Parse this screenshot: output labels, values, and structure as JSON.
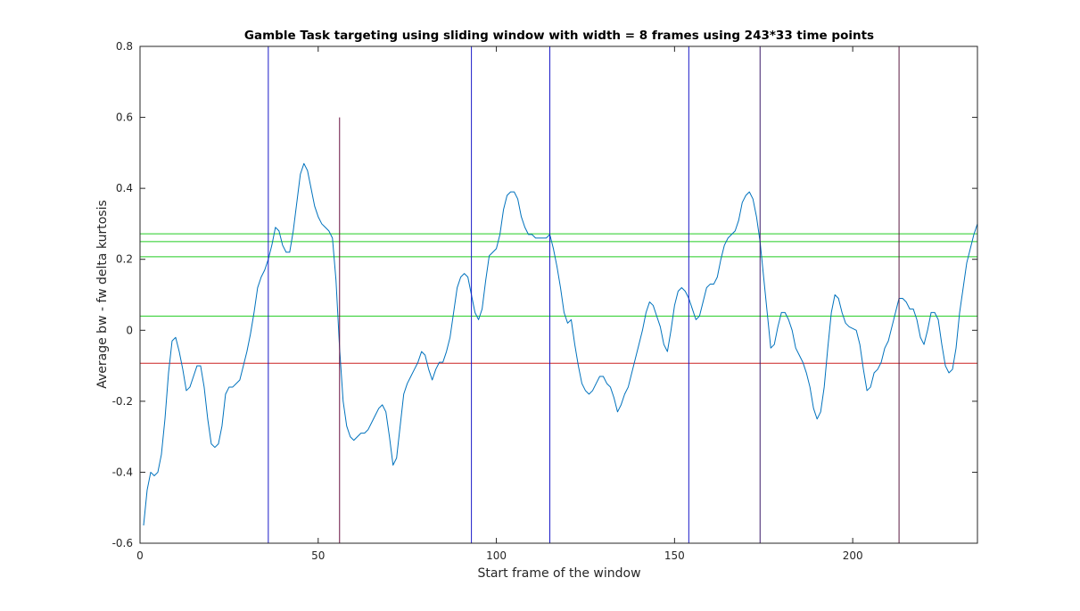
{
  "chart_data": {
    "type": "line",
    "title": "Gamble Task targeting using sliding window with width = 8 frames using 243*33 time points",
    "xlabel": "Start frame of the window",
    "ylabel": "Average bw - fw delta kurtosis",
    "xlim": [
      0,
      235
    ],
    "ylim": [
      -0.6,
      0.8
    ],
    "xticks": [
      0,
      50,
      100,
      150,
      200
    ],
    "yticks": [
      -0.6,
      -0.4,
      -0.2,
      0,
      0.2,
      0.4,
      0.6,
      0.8
    ],
    "grid": false,
    "legend": "none",
    "series": [
      {
        "color": "#0072BD",
        "x": [
          1,
          2,
          3,
          4,
          5,
          6,
          7,
          8,
          9,
          10,
          11,
          12,
          13,
          14,
          15,
          16,
          17,
          18,
          19,
          20,
          21,
          22,
          23,
          24,
          25,
          26,
          27,
          28,
          29,
          30,
          31,
          32,
          33,
          34,
          35,
          36,
          37,
          38,
          39,
          40,
          41,
          42,
          43,
          44,
          45,
          46,
          47,
          48,
          49,
          50,
          51,
          52,
          53,
          54,
          55,
          56,
          57,
          58,
          59,
          60,
          61,
          62,
          63,
          64,
          65,
          66,
          67,
          68,
          69,
          70,
          71,
          72,
          73,
          74,
          75,
          76,
          77,
          78,
          79,
          80,
          81,
          82,
          83,
          84,
          85,
          86,
          87,
          88,
          89,
          90,
          91,
          92,
          93,
          94,
          95,
          96,
          97,
          98,
          99,
          100,
          101,
          102,
          103,
          104,
          105,
          106,
          107,
          108,
          109,
          110,
          111,
          112,
          113,
          114,
          115,
          116,
          117,
          118,
          119,
          120,
          121,
          122,
          123,
          124,
          125,
          126,
          127,
          128,
          129,
          130,
          131,
          132,
          133,
          134,
          135,
          136,
          137,
          138,
          139,
          140,
          141,
          142,
          143,
          144,
          145,
          146,
          147,
          148,
          149,
          150,
          151,
          152,
          153,
          154,
          155,
          156,
          157,
          158,
          159,
          160,
          161,
          162,
          163,
          164,
          165,
          166,
          167,
          168,
          169,
          170,
          171,
          172,
          173,
          174,
          175,
          176,
          177,
          178,
          179,
          180,
          181,
          182,
          183,
          184,
          185,
          186,
          187,
          188,
          189,
          190,
          191,
          192,
          193,
          194,
          195,
          196,
          197,
          198,
          199,
          200,
          201,
          202,
          203,
          204,
          205,
          206,
          207,
          208,
          209,
          210,
          211,
          212,
          213,
          214,
          215,
          216,
          217,
          218,
          219,
          220,
          221,
          222,
          223,
          224,
          225,
          226,
          227,
          228,
          229,
          230,
          231,
          232,
          233,
          234,
          235
        ],
        "y": [
          -0.55,
          -0.45,
          -0.4,
          -0.41,
          -0.4,
          -0.35,
          -0.25,
          -0.12,
          -0.03,
          -0.02,
          -0.06,
          -0.11,
          -0.17,
          -0.16,
          -0.13,
          -0.1,
          -0.1,
          -0.16,
          -0.25,
          -0.32,
          -0.33,
          -0.32,
          -0.27,
          -0.18,
          -0.16,
          -0.16,
          -0.15,
          -0.14,
          -0.1,
          -0.06,
          -0.01,
          0.05,
          0.12,
          0.15,
          0.17,
          0.2,
          0.24,
          0.29,
          0.28,
          0.24,
          0.22,
          0.22,
          0.28,
          0.36,
          0.44,
          0.47,
          0.45,
          0.4,
          0.35,
          0.32,
          0.3,
          0.29,
          0.28,
          0.26,
          0.14,
          -0.05,
          -0.2,
          -0.27,
          -0.3,
          -0.31,
          -0.3,
          -0.29,
          -0.29,
          -0.28,
          -0.26,
          -0.24,
          -0.22,
          -0.21,
          -0.23,
          -0.3,
          -0.38,
          -0.36,
          -0.27,
          -0.18,
          -0.15,
          -0.13,
          -0.11,
          -0.09,
          -0.06,
          -0.07,
          -0.11,
          -0.14,
          -0.11,
          -0.09,
          -0.09,
          -0.06,
          -0.02,
          0.05,
          0.12,
          0.15,
          0.16,
          0.15,
          0.1,
          0.05,
          0.03,
          0.06,
          0.14,
          0.21,
          0.22,
          0.23,
          0.27,
          0.34,
          0.38,
          0.39,
          0.39,
          0.37,
          0.32,
          0.29,
          0.27,
          0.27,
          0.26,
          0.26,
          0.26,
          0.26,
          0.27,
          0.23,
          0.18,
          0.12,
          0.05,
          0.02,
          0.03,
          -0.04,
          -0.1,
          -0.15,
          -0.17,
          -0.18,
          -0.17,
          -0.15,
          -0.13,
          -0.13,
          -0.15,
          -0.16,
          -0.19,
          -0.23,
          -0.21,
          -0.18,
          -0.16,
          -0.12,
          -0.08,
          -0.04,
          0,
          0.05,
          0.08,
          0.07,
          0.04,
          0.01,
          -0.04,
          -0.06,
          0,
          0.07,
          0.11,
          0.12,
          0.11,
          0.09,
          0.06,
          0.03,
          0.04,
          0.08,
          0.12,
          0.13,
          0.13,
          0.15,
          0.2,
          0.24,
          0.26,
          0.27,
          0.28,
          0.31,
          0.36,
          0.38,
          0.39,
          0.37,
          0.32,
          0.25,
          0.15,
          0.05,
          -0.05,
          -0.04,
          0.01,
          0.05,
          0.05,
          0.03,
          0,
          -0.05,
          -0.07,
          -0.09,
          -0.12,
          -0.16,
          -0.22,
          -0.25,
          -0.23,
          -0.16,
          -0.05,
          0.05,
          0.1,
          0.09,
          0.05,
          0.02,
          0.01,
          0.005,
          0,
          -0.04,
          -0.11,
          -0.17,
          -0.16,
          -0.12,
          -0.11,
          -0.09,
          -0.05,
          -0.03,
          0.01,
          0.05,
          0.09,
          0.09,
          0.08,
          0.06,
          0.06,
          0.03,
          -0.02,
          -0.04,
          0,
          0.05,
          0.05,
          0.03,
          -0.04,
          -0.1,
          -0.12,
          -0.11,
          -0.05,
          0.05,
          0.12,
          0.19,
          0.23,
          0.27,
          0.3
        ]
      }
    ],
    "vertical_lines": [
      {
        "x": 36,
        "y_range": [
          -0.6,
          0.8
        ],
        "color": "#1a1ac8"
      },
      {
        "x": 56,
        "y_range": [
          -0.6,
          0.6
        ],
        "color": "#6a1040"
      },
      {
        "x": 93,
        "y_range": [
          -0.6,
          0.8
        ],
        "color": "#1a1ac8"
      },
      {
        "x": 115,
        "y_range": [
          -0.6,
          0.8
        ],
        "color": "#1a1ac8"
      },
      {
        "x": 154,
        "y_range": [
          -0.6,
          0.8
        ],
        "color": "#1a1ac8"
      },
      {
        "x": 174,
        "y_range": [
          -0.6,
          0.8
        ],
        "color": "#3a1a6a"
      },
      {
        "x": 213,
        "y_range": [
          -0.6,
          0.8
        ],
        "color": "#5a1a40"
      }
    ],
    "horizontal_lines": [
      {
        "y": 0.272,
        "color": "#22cc22"
      },
      {
        "y": 0.25,
        "color": "#22cc22"
      },
      {
        "y": 0.207,
        "color": "#22cc22"
      },
      {
        "y": 0.04,
        "color": "#22cc22"
      },
      {
        "y": -0.093,
        "color": "#cc2222"
      }
    ]
  }
}
